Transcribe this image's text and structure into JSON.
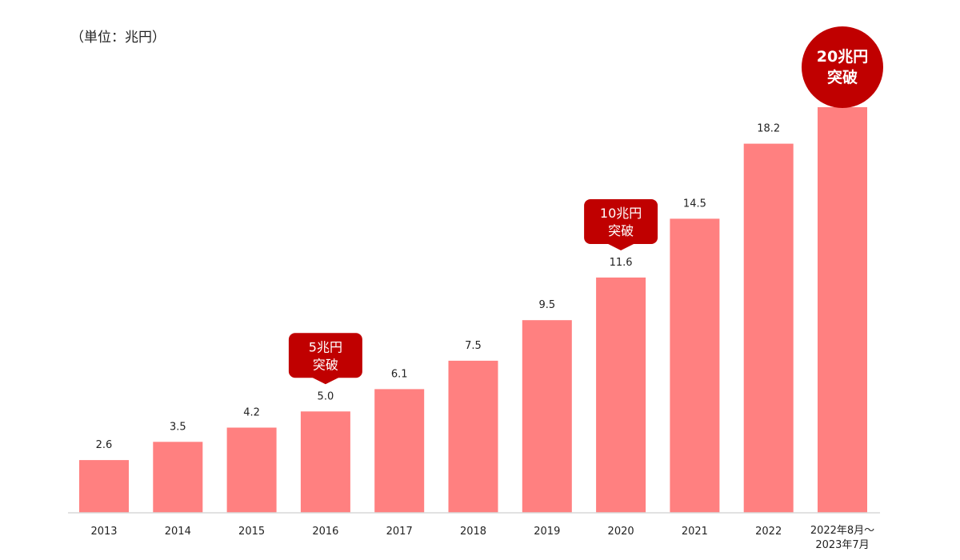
{
  "chart_data": {
    "type": "bar",
    "unit_label": "（単位：兆円）",
    "categories": [
      [
        "2013"
      ],
      [
        "2014"
      ],
      [
        "2015"
      ],
      [
        "2016"
      ],
      [
        "2017"
      ],
      [
        "2018"
      ],
      [
        "2019"
      ],
      [
        "2020"
      ],
      [
        "2021"
      ],
      [
        "2022"
      ],
      [
        "2022年8月～",
        "2023年7月"
      ]
    ],
    "values": [
      2.6,
      3.5,
      4.2,
      5.0,
      6.1,
      7.5,
      9.5,
      11.6,
      14.5,
      18.2,
      20.0
    ],
    "value_labels": [
      "2.6",
      "3.5",
      "4.2",
      "5.0",
      "6.1",
      "7.5",
      "9.5",
      "11.6",
      "14.5",
      "18.2",
      ""
    ],
    "ylim": [
      0,
      20
    ],
    "grid": false,
    "callouts": [
      {
        "category_index": 3,
        "lines": [
          "5兆円",
          "突破"
        ]
      },
      {
        "category_index": 7,
        "lines": [
          "10兆円",
          "突破"
        ]
      }
    ],
    "badge": {
      "category_index": 10,
      "lines": [
        "20兆円",
        "突破"
      ]
    },
    "colors": {
      "bar": "#ff8080",
      "callout": "#c00000",
      "axis": "#d9d9d9"
    }
  }
}
